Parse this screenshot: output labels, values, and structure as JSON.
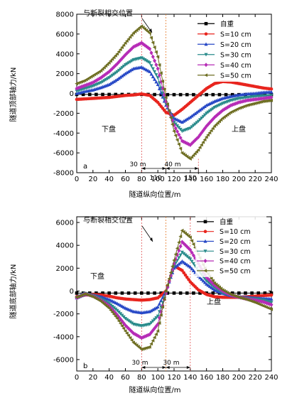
{
  "chart_data": [
    {
      "type": "line",
      "panel_label": "a",
      "xlabel": "隧道纵向位置/m",
      "ylabel": "隧道顶部轴力/kN",
      "xlim": [
        0,
        240
      ],
      "ylim": [
        -8000,
        8000
      ],
      "x_ticks": [
        "0",
        "20",
        "40",
        "60",
        "80",
        "100",
        "120",
        "140",
        "160",
        "180",
        "200",
        "220",
        "240"
      ],
      "y_ticks": [
        "8000",
        "6000",
        "4000",
        "2000",
        "0",
        "-2000",
        "-4000",
        "-6000",
        "-8000"
      ],
      "legend_placement": "top-right",
      "annotations": {
        "fault": "与断裂相交位置",
        "left_wall": "下盘",
        "right_wall": "上盘",
        "dim_left": "30 m",
        "dim_right": "40 m",
        "mark_a": "110",
        "mark_b": "150"
      },
      "x": [
        0,
        10,
        20,
        30,
        40,
        50,
        60,
        70,
        80,
        90,
        100,
        110,
        120,
        130,
        140,
        150,
        160,
        170,
        180,
        190,
        200,
        210,
        220,
        230,
        240
      ],
      "series": [
        {
          "name": "自重",
          "marker": "square",
          "color": "#000000",
          "values": [
            -100,
            -100,
            -100,
            -100,
            -100,
            -100,
            -100,
            -100,
            -100,
            -100,
            -120,
            -120,
            -120,
            -120,
            -120,
            -120,
            -120,
            -120,
            -120,
            -120,
            -120,
            -120,
            -120,
            -120,
            -120
          ]
        },
        {
          "name": "S=10 cm",
          "marker": "circle",
          "color": "#e8251e",
          "values": [
            -600,
            -550,
            -500,
            -450,
            -400,
            -300,
            -200,
            -150,
            -50,
            -200,
            -900,
            -1900,
            -2200,
            -1600,
            -900,
            -200,
            500,
            1000,
            1200,
            1150,
            1000,
            850,
            700,
            550,
            450
          ]
        },
        {
          "name": "S=20 cm",
          "marker": "triangle-up",
          "color": "#2748c6",
          "values": [
            0,
            200,
            350,
            600,
            900,
            1400,
            2000,
            2500,
            2650,
            2200,
            900,
            -1200,
            -2500,
            -2900,
            -2400,
            -1800,
            -1200,
            -800,
            -500,
            -300,
            -150,
            -50,
            0,
            100,
            150
          ]
        },
        {
          "name": "S=30 cm",
          "marker": "triangle-down",
          "color": "#2a8b8b",
          "values": [
            250,
            500,
            750,
            1100,
            1600,
            2200,
            2900,
            3400,
            3600,
            3100,
            1600,
            -1000,
            -2900,
            -3800,
            -3500,
            -2800,
            -2000,
            -1400,
            -1000,
            -700,
            -500,
            -400,
            -300,
            -250,
            -200
          ]
        },
        {
          "name": "S=40 cm",
          "marker": "diamond",
          "color": "#b62cb6",
          "values": [
            500,
            800,
            1100,
            1600,
            2200,
            3000,
            3900,
            4700,
            5100,
            4500,
            2500,
            -800,
            -3200,
            -4800,
            -5200,
            -4400,
            -3300,
            -2400,
            -1700,
            -1200,
            -900,
            -700,
            -600,
            -500,
            -400
          ]
        },
        {
          "name": "S=50 cm",
          "marker": "triangle-left",
          "color": "#6e6e22",
          "values": [
            1000,
            1300,
            1800,
            2300,
            3100,
            4000,
            5100,
            6100,
            6800,
            6100,
            3700,
            -400,
            -3800,
            -6000,
            -6600,
            -5700,
            -4400,
            -3300,
            -2500,
            -1900,
            -1500,
            -1200,
            -1000,
            -800,
            -700
          ]
        }
      ]
    },
    {
      "type": "line",
      "panel_label": "b",
      "xlabel": "隧道纵向位置/m",
      "ylabel": "隧道底部轴力/kN",
      "xlim": [
        0,
        240
      ],
      "ylim": [
        -7000,
        6500
      ],
      "x_ticks": [
        "0",
        "20",
        "40",
        "60",
        "80",
        "100",
        "120",
        "140",
        "160",
        "180",
        "200",
        "220",
        "240"
      ],
      "y_ticks": [
        "6000",
        "4000",
        "2000",
        "0",
        "-2000",
        "-4000",
        "-6000"
      ],
      "legend_placement": "top-right",
      "annotations": {
        "fault": "与断裂相交位置",
        "left_wall": "下盘",
        "right_wall": "上盘",
        "dim_left": "30 m",
        "dim_right": "30 m"
      },
      "x": [
        0,
        10,
        20,
        30,
        40,
        50,
        60,
        70,
        80,
        90,
        100,
        110,
        120,
        130,
        140,
        150,
        160,
        170,
        180,
        190,
        200,
        210,
        220,
        230,
        240
      ],
      "series": [
        {
          "name": "自重",
          "marker": "square",
          "color": "#000000",
          "values": [
            -180,
            -180,
            -180,
            -180,
            -180,
            -180,
            -180,
            -180,
            -180,
            -180,
            -180,
            -180,
            -180,
            -180,
            -180,
            -180,
            -180,
            -180,
            -180,
            -180,
            -180,
            -180,
            -180,
            -180,
            -180
          ]
        },
        {
          "name": "S=10 cm",
          "marker": "circle",
          "color": "#e8251e",
          "values": [
            -500,
            -350,
            -300,
            -350,
            -450,
            -600,
            -700,
            -750,
            -800,
            -750,
            -600,
            0,
            2200,
            1800,
            800,
            100,
            -300,
            -500,
            -550,
            -550,
            -550,
            -500,
            -450,
            -400,
            -350
          ]
        },
        {
          "name": "S=20 cm",
          "marker": "triangle-up",
          "color": "#2748c6",
          "values": [
            -600,
            -300,
            -350,
            -500,
            -750,
            -1100,
            -1500,
            -1800,
            -1900,
            -1800,
            -1400,
            0,
            2000,
            2600,
            2100,
            1300,
            600,
            100,
            -200,
            -400,
            -500,
            -550,
            -600,
            -650,
            -700
          ]
        },
        {
          "name": "S=30 cm",
          "marker": "triangle-down",
          "color": "#2a8b8b",
          "values": [
            -600,
            -200,
            -400,
            -700,
            -1100,
            -1700,
            -2400,
            -2900,
            -3050,
            -2900,
            -2200,
            -200,
            2200,
            3400,
            2800,
            1800,
            900,
            300,
            -150,
            -400,
            -550,
            -650,
            -700,
            -800,
            -1000
          ]
        },
        {
          "name": "S=40 cm",
          "marker": "diamond",
          "color": "#b62cb6",
          "values": [
            -600,
            -250,
            -450,
            -800,
            -1300,
            -2100,
            -3000,
            -3700,
            -4100,
            -3800,
            -2900,
            -200,
            2400,
            4300,
            3600,
            2400,
            1200,
            500,
            0,
            -350,
            -550,
            -700,
            -800,
            -950,
            -1200
          ]
        },
        {
          "name": "S=50 cm",
          "marker": "triangle-left",
          "color": "#6e6e22",
          "values": [
            -550,
            -250,
            -500,
            -900,
            -1500,
            -2400,
            -3500,
            -4500,
            -5100,
            -4900,
            -3500,
            0,
            2700,
            5300,
            4700,
            3200,
            1700,
            700,
            100,
            -300,
            -550,
            -750,
            -1000,
            -1300,
            -1600
          ]
        }
      ]
    }
  ]
}
